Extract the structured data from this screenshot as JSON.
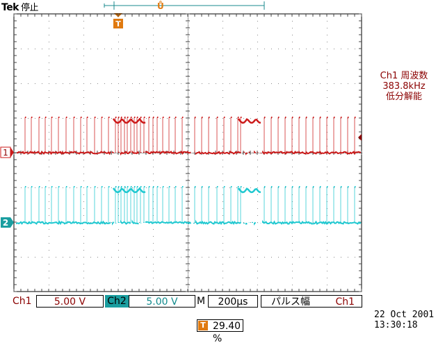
{
  "header": {
    "brand": "Tek",
    "state": "停止"
  },
  "measurement": {
    "line1": "Ch1 周波数",
    "line2": "383.8kHz",
    "line3": "低分解能"
  },
  "channels": [
    {
      "label": "Ch1",
      "scale": "5.00 V",
      "marker": "1",
      "color": "#cc1a1a"
    },
    {
      "label": "Ch2",
      "scale": "5.00 V",
      "marker": "2",
      "color": "#1fc8d0"
    }
  ],
  "timebase": {
    "label": "M",
    "value": "200µs"
  },
  "meas_bar": {
    "name": "パルス幅",
    "source": "Ch1"
  },
  "trigger": {
    "marker": "T",
    "value": "29.40 %"
  },
  "datetime": {
    "date": "22 Oct  2001",
    "time": "13:30:18"
  },
  "icons": {
    "trigger": "trigger-marker-icon",
    "record": "record-bar-icon",
    "level": "trigger-level-arrow-icon"
  }
}
